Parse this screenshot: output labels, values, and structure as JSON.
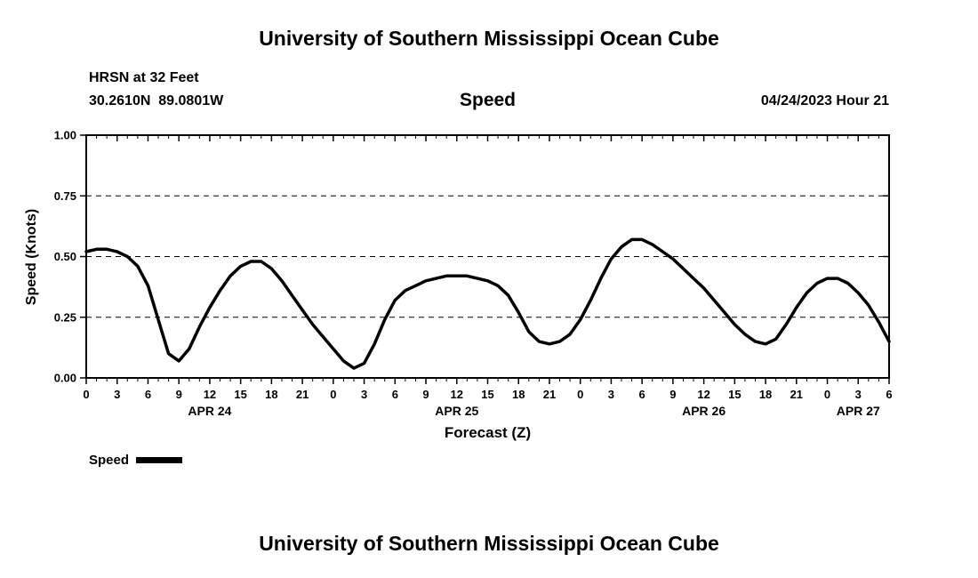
{
  "page": {
    "top_title": "University of Southern Mississippi Ocean Cube",
    "bottom_title": "University of Southern Mississippi Ocean Cube"
  },
  "header": {
    "station_line1": "HRSN at 32 Feet",
    "station_line2": "30.2610N  89.0801W",
    "center_title": "Speed",
    "datetime": "04/24/2023 Hour 21"
  },
  "legend": {
    "label": "Speed",
    "swatch_color": "#000000"
  },
  "chart_data": {
    "type": "line",
    "title": "Speed",
    "xlabel": "Forecast (Z)",
    "ylabel": "Speed (Knots)",
    "xlim": [
      0,
      78
    ],
    "ylim": [
      0,
      1
    ],
    "grid": "dashed-horizontal",
    "legend_position": "bottom-left",
    "yticks": [
      0,
      0.25,
      0.5,
      0.75,
      1
    ],
    "ytick_labels": [
      "0.00",
      "0.25",
      "0.50",
      "0.75",
      "1.00"
    ],
    "xticks": [
      0,
      3,
      6,
      9,
      12,
      15,
      18,
      21,
      24,
      27,
      30,
      33,
      36,
      39,
      42,
      45,
      48,
      51,
      54,
      57,
      60,
      63,
      66,
      69,
      72,
      75,
      78
    ],
    "xtick_labels": [
      "0",
      "3",
      "6",
      "9",
      "12",
      "15",
      "18",
      "21",
      "0",
      "3",
      "6",
      "9",
      "12",
      "15",
      "18",
      "21",
      "0",
      "3",
      "6",
      "9",
      "12",
      "15",
      "18",
      "21",
      "0",
      "3",
      "6"
    ],
    "x_minor_step": 1,
    "day_labels": [
      {
        "label": "APR 24",
        "hour": 12
      },
      {
        "label": "APR 25",
        "hour": 36
      },
      {
        "label": "APR 26",
        "hour": 60
      },
      {
        "label": "APR 27",
        "hour": 75
      }
    ],
    "line_color": "#000000",
    "line_width": 3.5,
    "series": [
      {
        "name": "Speed",
        "x": [
          0,
          1,
          2,
          3,
          4,
          5,
          6,
          7,
          8,
          9,
          10,
          11,
          12,
          13,
          14,
          15,
          16,
          17,
          18,
          19,
          20,
          21,
          22,
          23,
          24,
          25,
          26,
          27,
          28,
          29,
          30,
          31,
          32,
          33,
          34,
          35,
          36,
          37,
          38,
          39,
          40,
          41,
          42,
          43,
          44,
          45,
          46,
          47,
          48,
          49,
          50,
          51,
          52,
          53,
          54,
          55,
          56,
          57,
          58,
          59,
          60,
          61,
          62,
          63,
          64,
          65,
          66,
          67,
          68,
          69,
          70,
          71,
          72,
          73,
          74,
          75,
          76,
          77,
          78
        ],
        "y": [
          0.52,
          0.53,
          0.53,
          0.52,
          0.5,
          0.46,
          0.38,
          0.24,
          0.1,
          0.07,
          0.12,
          0.21,
          0.29,
          0.36,
          0.42,
          0.46,
          0.48,
          0.48,
          0.45,
          0.4,
          0.34,
          0.28,
          0.22,
          0.17,
          0.12,
          0.07,
          0.04,
          0.06,
          0.14,
          0.24,
          0.32,
          0.36,
          0.38,
          0.4,
          0.41,
          0.42,
          0.42,
          0.42,
          0.41,
          0.4,
          0.38,
          0.34,
          0.27,
          0.19,
          0.15,
          0.14,
          0.15,
          0.18,
          0.24,
          0.32,
          0.41,
          0.49,
          0.54,
          0.57,
          0.57,
          0.55,
          0.52,
          0.49,
          0.45,
          0.41,
          0.37,
          0.32,
          0.27,
          0.22,
          0.18,
          0.15,
          0.14,
          0.16,
          0.22,
          0.29,
          0.35,
          0.39,
          0.41,
          0.41,
          0.39,
          0.35,
          0.3,
          0.23,
          0.15
        ]
      }
    ]
  }
}
